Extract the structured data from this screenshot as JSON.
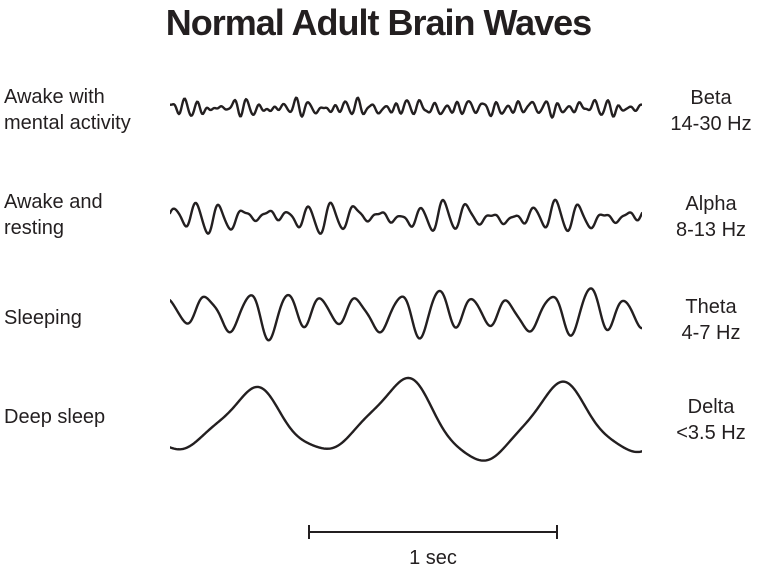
{
  "title": "Normal Adult Brain Waves",
  "ink_color": "#231f20",
  "rows": [
    {
      "state": "Awake with\nmental activity",
      "band": "Beta",
      "frequency": "14-30 Hz",
      "wave": {
        "type": "eeg-trace",
        "components": [
          {
            "f": 38,
            "a": 4.2,
            "p": 0.5
          },
          {
            "f": 30,
            "a": 2.6,
            "p": 2.1
          },
          {
            "f": 47,
            "a": 2.2,
            "p": 4.2
          },
          {
            "f": 8,
            "a": 1.4,
            "p": 1.0
          },
          {
            "f": 62,
            "a": 1.1,
            "p": 3.3
          }
        ]
      }
    },
    {
      "state": "Awake and\nresting",
      "band": "Alpha",
      "frequency": "8-13 Hz",
      "wave": {
        "type": "eeg-trace",
        "components": [
          {
            "f": 21,
            "a": 8.0,
            "p": 0.3
          },
          {
            "f": 17,
            "a": 4.2,
            "p": 2.8
          },
          {
            "f": 25,
            "a": 3.4,
            "p": 5.1
          },
          {
            "f": 5,
            "a": 2.2,
            "p": 1.4
          },
          {
            "f": 42,
            "a": 1.4,
            "p": 0.9
          }
        ]
      }
    },
    {
      "state": "Sleeping",
      "band": "Theta",
      "frequency": "4-7 Hz",
      "wave": {
        "type": "eeg-trace",
        "components": [
          {
            "f": 12.5,
            "a": 15.0,
            "p": 1.2
          },
          {
            "f": 9.5,
            "a": 6.5,
            "p": 4.0
          },
          {
            "f": 15.5,
            "a": 5.5,
            "p": 2.6
          },
          {
            "f": 3.5,
            "a": 3.2,
            "p": 0.7
          },
          {
            "f": 25,
            "a": 1.8,
            "p": 3.9
          }
        ]
      }
    },
    {
      "state": "Deep sleep",
      "band": "Delta",
      "frequency": "<3.5 Hz",
      "wave": {
        "type": "eeg-trace",
        "components": [
          {
            "f": 3.1,
            "a": 33.0,
            "p": 4.4
          },
          {
            "f": 2.2,
            "a": 6.0,
            "p": 1.8
          },
          {
            "f": 6.2,
            "a": 4.5,
            "p": 0.4
          },
          {
            "f": 9.3,
            "a": 2.5,
            "p": 2.9
          },
          {
            "f": 1.1,
            "a": 3.0,
            "p": 5.5
          }
        ]
      }
    }
  ],
  "scale_bar": {
    "label": "1 sec"
  }
}
